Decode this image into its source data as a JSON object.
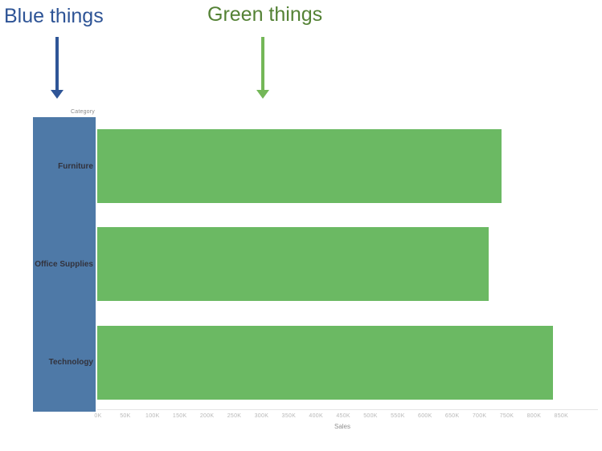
{
  "annotations": {
    "blue": {
      "label": "Blue things",
      "text_color": "#2E5496",
      "arrow_color": "#2F5597"
    },
    "green": {
      "label": "Green things",
      "text_color": "#548235",
      "arrow_color": "#74B758"
    }
  },
  "chart": {
    "field_header": "Category",
    "axis_label": "Sales",
    "colors": {
      "bar_green": "#6BB963",
      "header_blue": "#4E79A7",
      "tick_text": "#B8B8B8"
    }
  },
  "chart_data": {
    "type": "bar",
    "orientation": "horizontal",
    "title": "",
    "categories": [
      "Furniture",
      "Office Supplies",
      "Technology"
    ],
    "series": [
      {
        "name": "Sales",
        "values": [
          742000,
          719000,
          836000
        ]
      }
    ],
    "xlabel": "Sales",
    "ylabel": "Category",
    "xlim": [
      0,
      875000
    ],
    "tick_step": 50000,
    "xticks": [
      "0K",
      "50K",
      "100K",
      "150K",
      "200K",
      "250K",
      "300K",
      "350K",
      "400K",
      "450K",
      "500K",
      "550K",
      "600K",
      "650K",
      "700K",
      "750K",
      "800K",
      "850K"
    ],
    "grid": false,
    "legend": "none"
  }
}
